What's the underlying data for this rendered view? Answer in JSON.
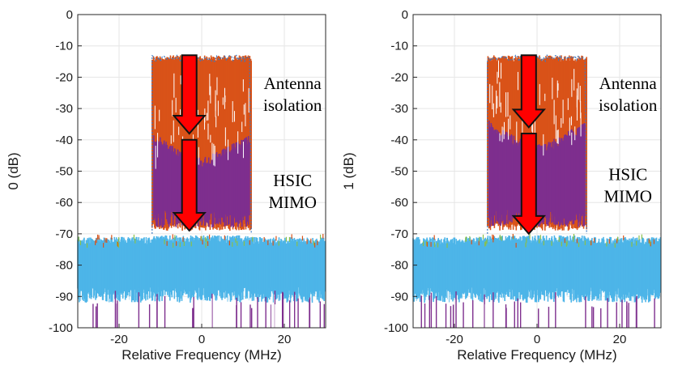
{
  "colors": {
    "noise": "#4db5e8",
    "no_cancellation": "#d95319",
    "after_isolation": "#7e2f8e",
    "arrow": "#ff0000",
    "grid": "#e6e6e6"
  },
  "chart_data": [
    {
      "type": "area",
      "ylabel": "0 (dB)",
      "xlabel": "Relative Frequency (MHz)",
      "xlim": [
        -30,
        30
      ],
      "ylim": [
        -100,
        0
      ],
      "xticks": [
        -20,
        0,
        20
      ],
      "yticks": [
        0,
        -10,
        -20,
        -30,
        -40,
        -50,
        -60,
        -70,
        -80,
        -90,
        -100
      ],
      "grid": true,
      "band_mhz": [
        -12,
        12
      ],
      "series": [
        {
          "role": "no-cancellation",
          "level_db": -13
        },
        {
          "role": "after-antenna-isolation",
          "level_db": -40
        },
        {
          "role": "after-hsic-mimo",
          "level_db": -70
        },
        {
          "role": "noise-floor",
          "range_db": [
            -71,
            -100
          ]
        }
      ],
      "annotations": [
        {
          "text": "Antenna",
          "x": 22,
          "y": -22
        },
        {
          "text": "isolation",
          "x": 22,
          "y": -29
        },
        {
          "text": "HSIC",
          "x": 22,
          "y": -53
        },
        {
          "text": "MIMO",
          "x": 22,
          "y": -60
        }
      ],
      "arrows": [
        {
          "x": -3,
          "from_db": -13,
          "to_db": -38
        },
        {
          "x": -3,
          "from_db": -40,
          "to_db": -69
        }
      ]
    },
    {
      "type": "area",
      "ylabel": "1 (dB)",
      "xlabel": "Relative Frequency (MHz)",
      "xlim": [
        -30,
        30
      ],
      "ylim": [
        -100,
        0
      ],
      "xticks": [
        -20,
        0,
        20
      ],
      "yticks": [
        0,
        -10,
        -20,
        -30,
        -40,
        -50,
        -60,
        -70,
        -80,
        -90,
        -100
      ],
      "grid": true,
      "band_mhz": [
        -12,
        12
      ],
      "series": [
        {
          "role": "no-cancellation",
          "level_db": -13
        },
        {
          "role": "after-antenna-isolation",
          "level_db": -36
        },
        {
          "role": "after-hsic-mimo",
          "level_db": -70
        },
        {
          "role": "noise-floor",
          "range_db": [
            -71,
            -100
          ]
        }
      ],
      "annotations": [
        {
          "text": "Antenna",
          "x": 22,
          "y": -22
        },
        {
          "text": "isolation",
          "x": 22,
          "y": -29
        },
        {
          "text": "HSIC",
          "x": 22,
          "y": -51
        },
        {
          "text": "MIMO",
          "x": 22,
          "y": -58
        }
      ],
      "arrows": [
        {
          "x": -2,
          "from_db": -13,
          "to_db": -36
        },
        {
          "x": -2,
          "from_db": -38,
          "to_db": -70
        }
      ]
    }
  ]
}
